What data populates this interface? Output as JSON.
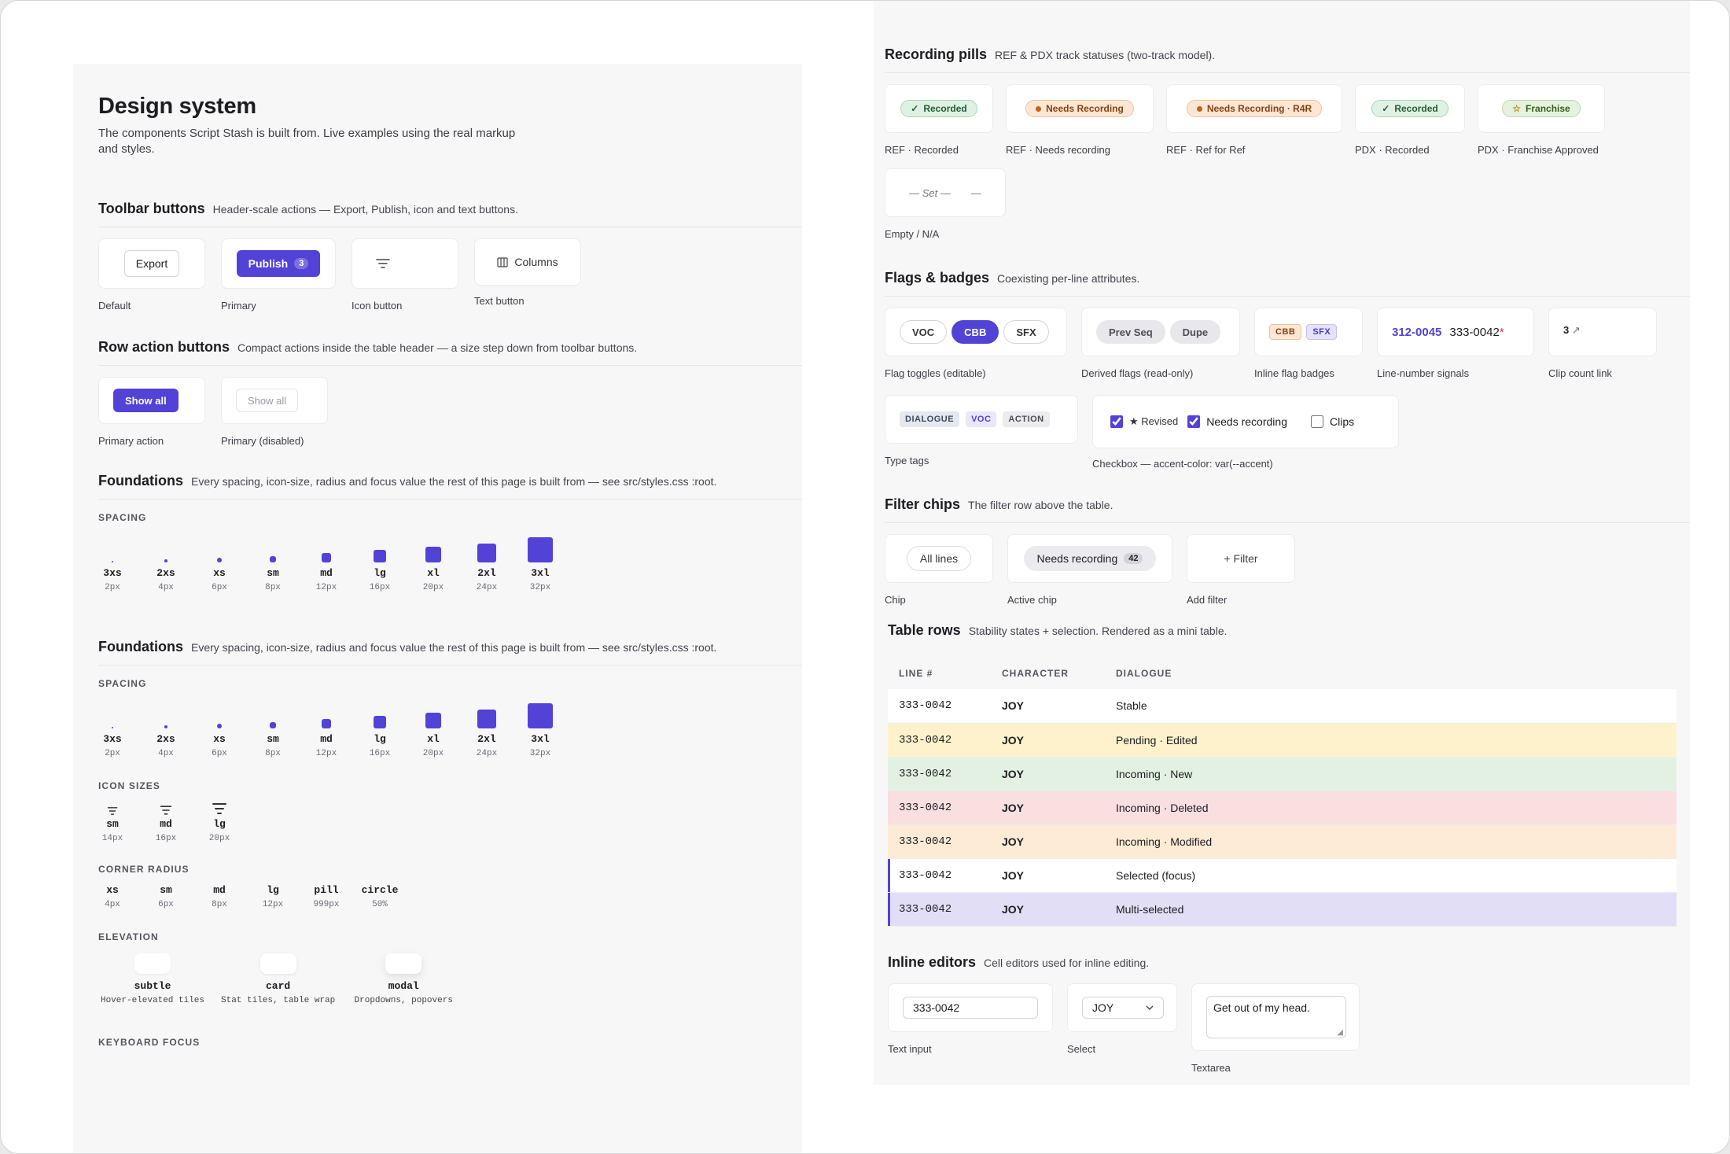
{
  "left": {
    "title": "Design system",
    "subtitle_l1": "The components Script Stash is built from. Live examples using the real markup",
    "subtitle_l2": "and styles.",
    "toolbar": {
      "title": "Toolbar buttons",
      "desc": "Header-scale actions — Export, Publish, icon and text buttons.",
      "export_label": "Export",
      "publish_label": "Publish",
      "publish_count": "3",
      "columns_label": "Columns",
      "caps": [
        "Default",
        "Primary",
        "Icon button",
        "Text button"
      ]
    },
    "row_actions": {
      "title": "Row action buttons",
      "desc": "Compact actions inside the table header — a size step down from toolbar buttons.",
      "primary_label": "Show all",
      "disabled_label": "Show all",
      "caps": [
        "Primary action",
        "Primary (disabled)"
      ]
    },
    "foundations": {
      "title": "Foundations",
      "desc": "Every spacing, icon-size, radius and focus value the rest of this page is built from — see src/styles.css :root.",
      "spacing_label": "SPACING",
      "spacing": [
        {
          "name": "3xs",
          "value": "2px",
          "size": 2
        },
        {
          "name": "2xs",
          "value": "4px",
          "size": 4
        },
        {
          "name": "xs",
          "value": "6px",
          "size": 6
        },
        {
          "name": "sm",
          "value": "8px",
          "size": 8
        },
        {
          "name": "md",
          "value": "12px",
          "size": 12
        },
        {
          "name": "lg",
          "value": "16px",
          "size": 16
        },
        {
          "name": "xl",
          "value": "20px",
          "size": 20
        },
        {
          "name": "2xl",
          "value": "24px",
          "size": 24
        },
        {
          "name": "3xl",
          "value": "32px",
          "size": 32
        }
      ],
      "icon_sizes_label": "ICON SIZES",
      "icon_sizes": [
        {
          "name": "sm",
          "value": "14px",
          "size": 14
        },
        {
          "name": "md",
          "value": "16px",
          "size": 16
        },
        {
          "name": "lg",
          "value": "20px",
          "size": 20
        }
      ],
      "radius_label": "CORNER RADIUS",
      "radius": [
        {
          "name": "xs",
          "value": "4px"
        },
        {
          "name": "sm",
          "value": "6px"
        },
        {
          "name": "md",
          "value": "8px"
        },
        {
          "name": "lg",
          "value": "12px"
        },
        {
          "name": "pill",
          "value": "999px"
        },
        {
          "name": "circle",
          "value": "50%"
        }
      ],
      "elevation_label": "ELEVATION",
      "elevation": [
        {
          "name": "subtle",
          "desc": "Hover-elevated tiles"
        },
        {
          "name": "card",
          "desc": "Stat tiles, table wrap"
        },
        {
          "name": "modal",
          "desc": "Dropdowns, popovers"
        }
      ],
      "focus_label": "KEYBOARD FOCUS"
    }
  },
  "right": {
    "recording": {
      "title": "Recording pills",
      "desc": "REF & PDX track statuses (two-track model).",
      "items": [
        {
          "pill": "Recorded",
          "caption": "REF · Recorded"
        },
        {
          "pill": "Needs Recording",
          "caption": "REF · Needs recording"
        },
        {
          "pill": "Needs Recording · R4R",
          "caption": "REF · Ref for Ref"
        },
        {
          "pill": "Recorded",
          "caption": "PDX · Recorded"
        },
        {
          "pill": "Franchise",
          "caption": "PDX · Franchise Approved"
        }
      ],
      "empty_set": "— Set —",
      "empty_dash": "—",
      "empty_caption": "Empty / N/A"
    },
    "flags": {
      "title": "Flags & badges",
      "desc": "Coexisting per-line attributes.",
      "toggles": [
        "VOC",
        "CBB",
        "SFX"
      ],
      "derived": [
        "Prev Seq",
        "Dupe"
      ],
      "inline": [
        "CBB",
        "SFX"
      ],
      "line_link": "312-0045",
      "line_mod": "333-0042",
      "line_star": "*",
      "clip_count": "3",
      "caps": [
        "Flag toggles (editable)",
        "Derived flags (read-only)",
        "Inline flag badges",
        "Line-number signals",
        "Clip count link"
      ],
      "type_tags": [
        "DIALOGUE",
        "VOC",
        "ACTION"
      ],
      "type_caption": "Type tags",
      "cb_revised": "Revised",
      "cb_needs": "Needs recording",
      "cb_clips": "Clips",
      "cb_caption": "Checkbox — accent-color: var(--accent)"
    },
    "filters": {
      "title": "Filter chips",
      "desc": "The filter row above the table.",
      "chip": "All lines",
      "active": "Needs recording",
      "active_count": "42",
      "add": "Filter",
      "caps": [
        "Chip",
        "Active chip",
        "Add filter"
      ]
    },
    "table": {
      "title": "Table rows",
      "desc": "Stability states + selection. Rendered as a mini table.",
      "headers": [
        "LINE #",
        "CHARACTER",
        "DIALOGUE"
      ],
      "rows": [
        {
          "line": "333-0042",
          "char": "JOY",
          "dialogue": "Stable"
        },
        {
          "line": "333-0042",
          "char": "JOY",
          "dialogue": "Pending · Edited"
        },
        {
          "line": "333-0042",
          "char": "JOY",
          "dialogue": "Incoming · New"
        },
        {
          "line": "333-0042",
          "char": "JOY",
          "dialogue": "Incoming · Deleted"
        },
        {
          "line": "333-0042",
          "char": "JOY",
          "dialogue": "Incoming · Modified"
        },
        {
          "line": "333-0042",
          "char": "JOY",
          "dialogue": "Selected (focus)"
        },
        {
          "line": "333-0042",
          "char": "JOY",
          "dialogue": "Multi-selected"
        }
      ]
    },
    "editors": {
      "title": "Inline editors",
      "desc": "Cell editors used for inline editing.",
      "text_value": "333-0042",
      "select_value": "JOY",
      "textarea_value": "Get out of my head.",
      "caps": [
        "Text input",
        "Select",
        "Textarea"
      ]
    }
  },
  "colors": {
    "accent": "#5242d6",
    "row_pending": "#fdf2cc",
    "row_new": "#e3f1e3",
    "row_deleted": "#f9dfe0",
    "row_modified": "#fdebd6",
    "row_multi": "#e2def5"
  }
}
